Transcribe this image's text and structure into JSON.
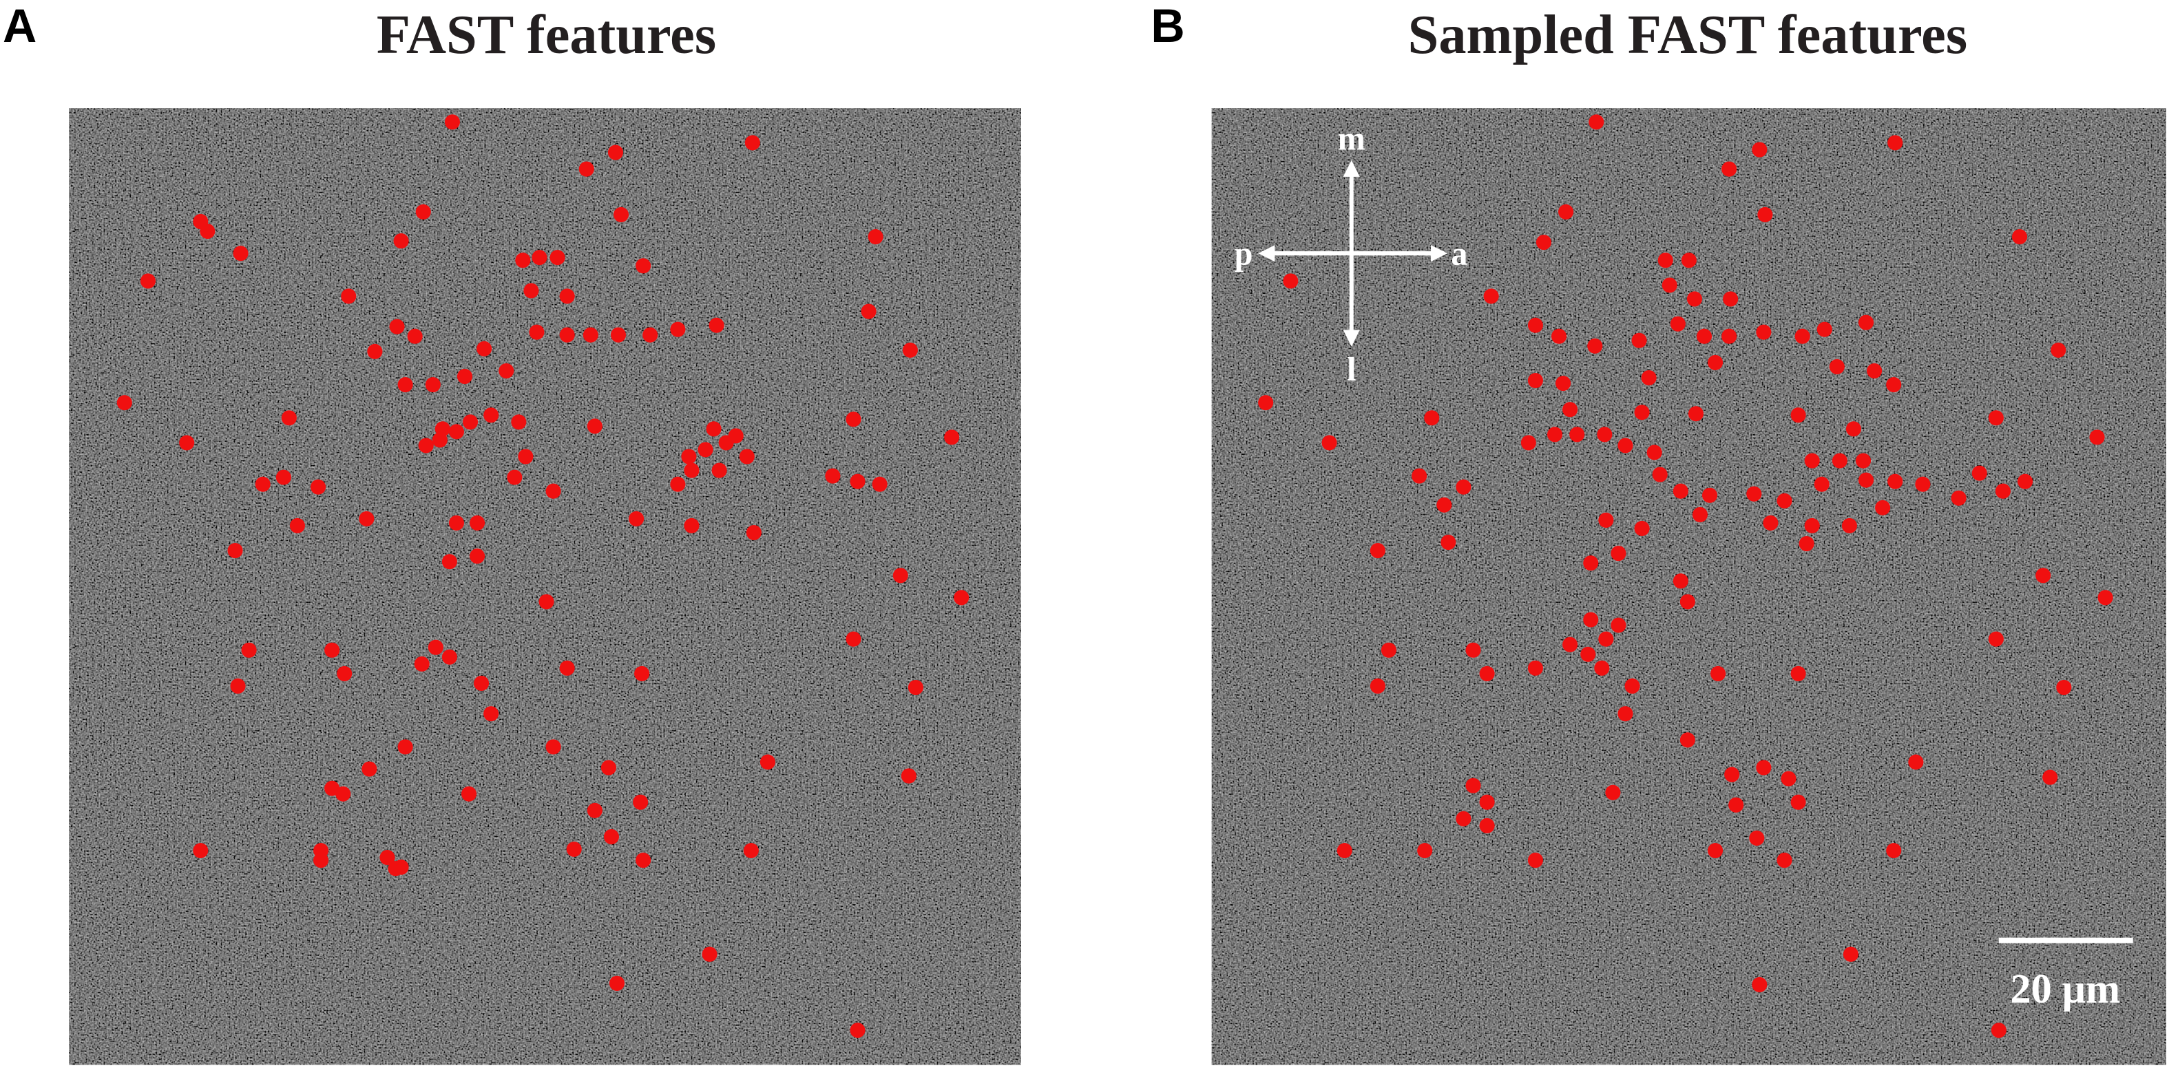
{
  "panels": [
    {
      "label": "A",
      "title": "FAST features"
    },
    {
      "label": "B",
      "title": "Sampled FAST features",
      "orientation": {
        "up": "m",
        "left": "p",
        "right": "a",
        "down": "l"
      },
      "scale_bar": "20 μm"
    }
  ]
}
